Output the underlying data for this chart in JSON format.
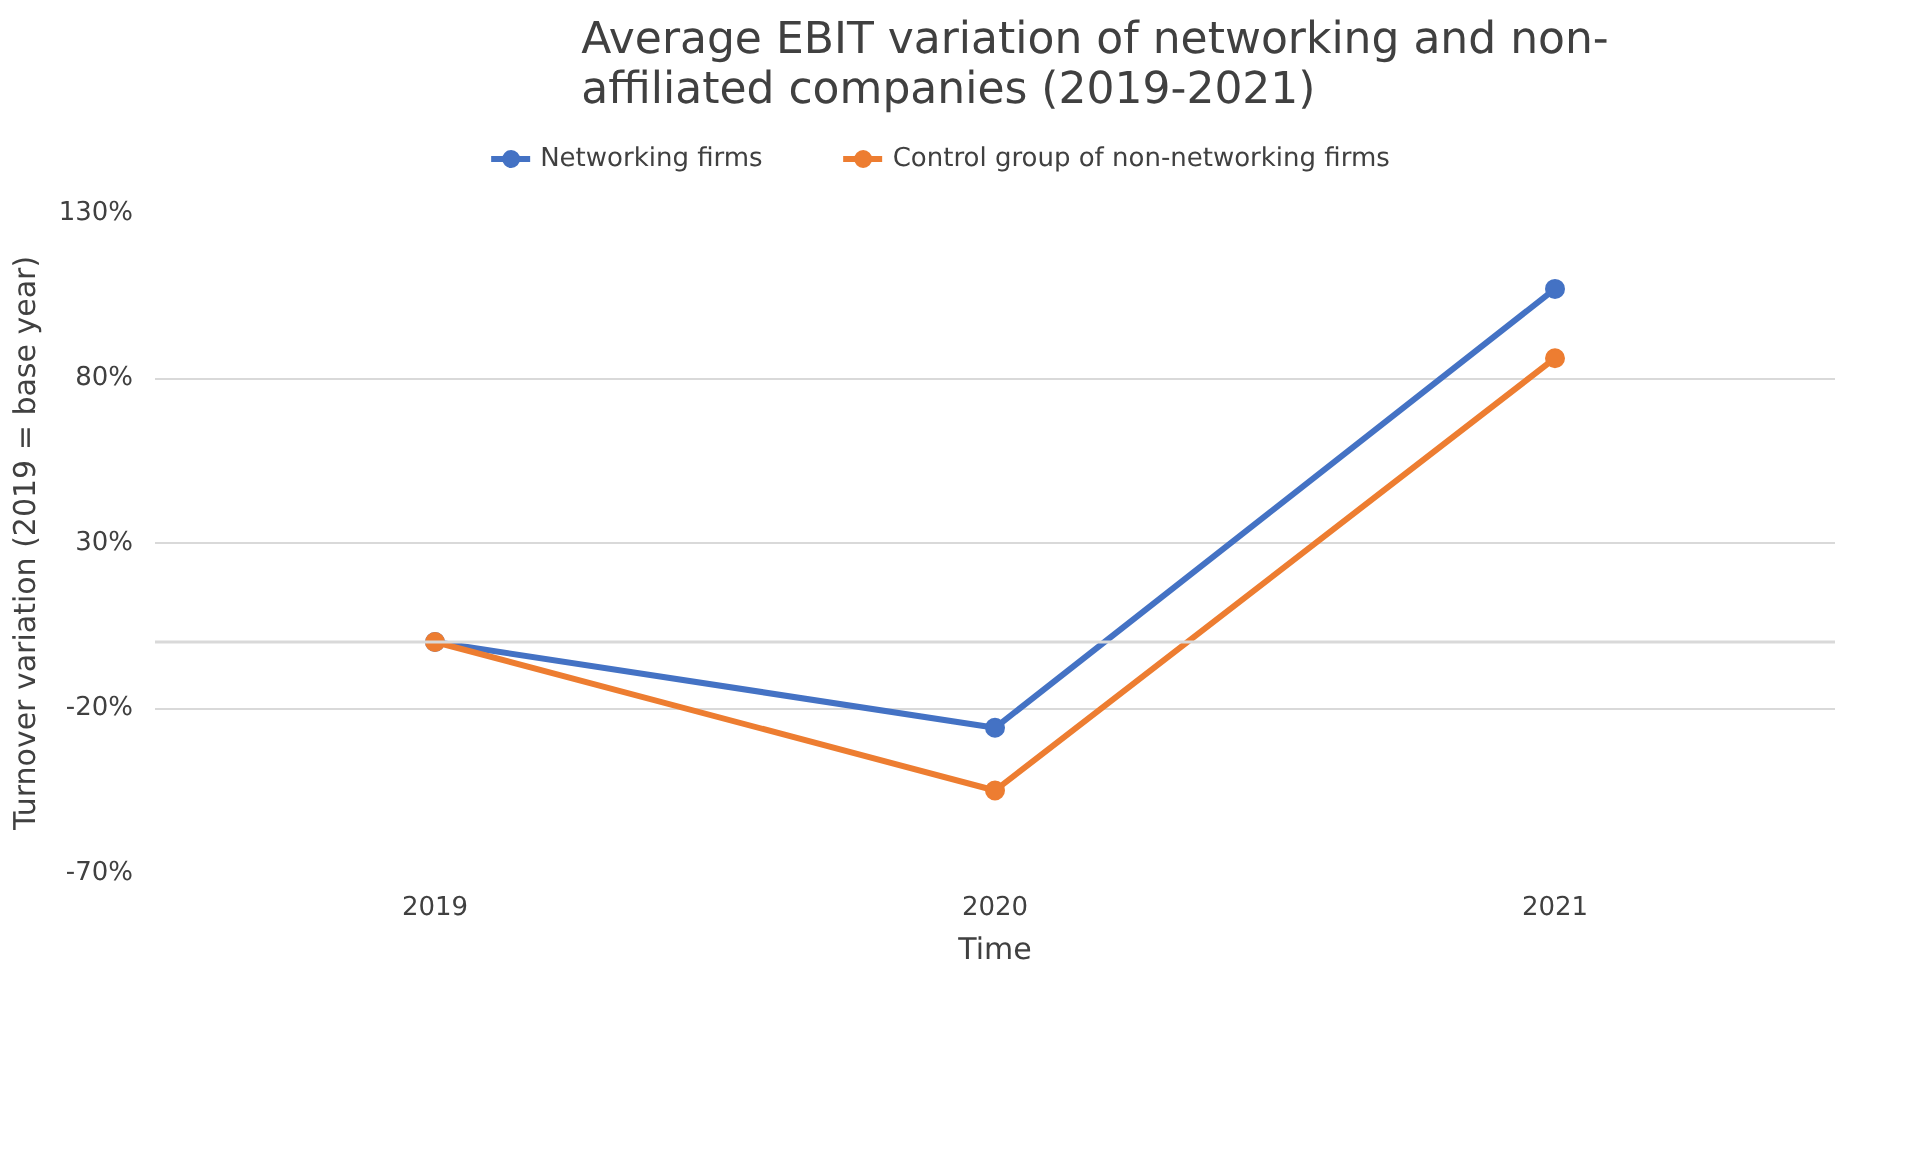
{
  "chart_data": {
    "type": "line",
    "title": "Average EBIT variation of networking and non-affiliated companies (2019-2021)",
    "xlabel": "Time",
    "ylabel": "Turnover variation (2019 = base year)",
    "categories": [
      "2019",
      "2020",
      "2021"
    ],
    "series": [
      {
        "name": "Networking firms",
        "color": "#4472c4",
        "values": [
          0,
          -26,
          107
        ]
      },
      {
        "name": "Control group of non-networking firms",
        "color": "#ed7d31",
        "values": [
          0,
          -45,
          86
        ]
      }
    ],
    "ylim": [
      -70,
      130
    ],
    "yticks": [
      {
        "value": -70,
        "label": "-70%"
      },
      {
        "value": -20,
        "label": "-20%"
      },
      {
        "value": 30,
        "label": "30%"
      },
      {
        "value": 80,
        "label": "80%"
      },
      {
        "value": 130,
        "label": "130%"
      }
    ],
    "ref_lines": [
      {
        "axis": "y",
        "value": 0,
        "label": null,
        "color": "#d9d9d9"
      }
    ],
    "grid": "y",
    "legend": "top",
    "marker": "circle",
    "line_style": "solid"
  }
}
